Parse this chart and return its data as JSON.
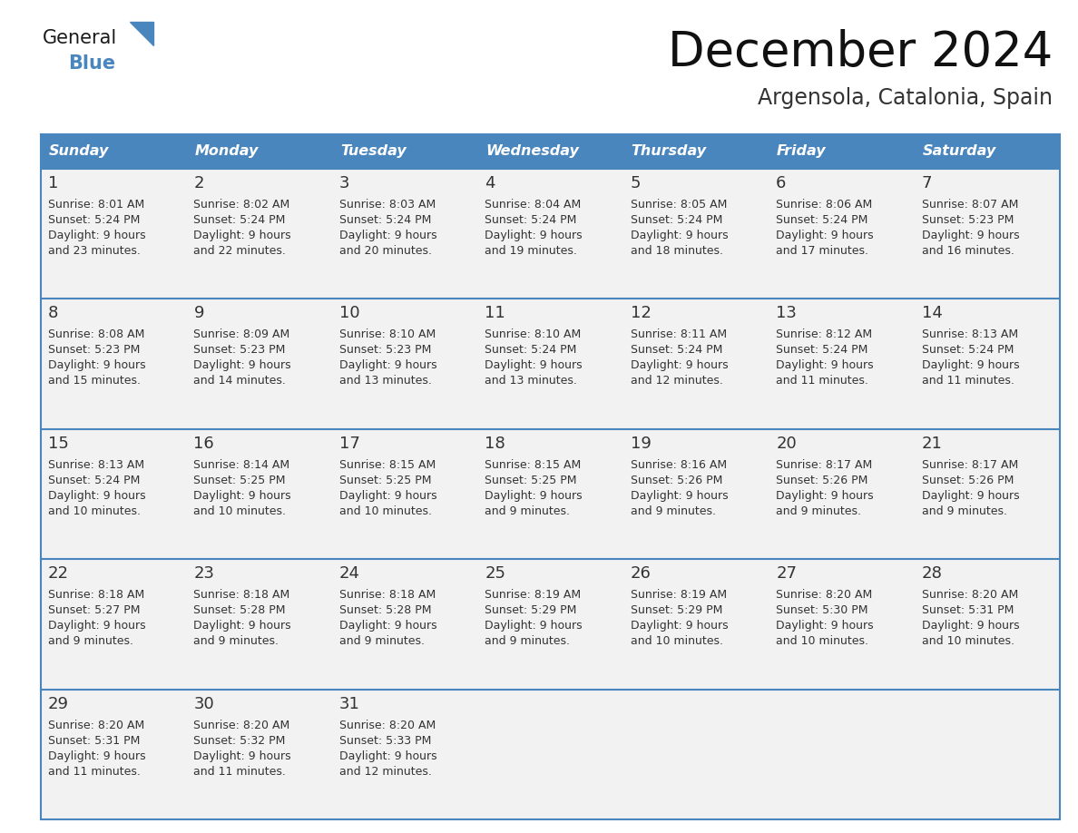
{
  "title": "December 2024",
  "subtitle": "Argensola, Catalonia, Spain",
  "header_bg_color": "#4a86be",
  "header_text_color": "#ffffff",
  "row_line_color": "#4a86be",
  "text_color": "#333333",
  "day_num_color": "#333333",
  "cell_bg_color": "#f2f2f2",
  "days_of_week": [
    "Sunday",
    "Monday",
    "Tuesday",
    "Wednesday",
    "Thursday",
    "Friday",
    "Saturday"
  ],
  "calendar_data": [
    [
      {
        "day": 1,
        "sunrise": "8:01 AM",
        "sunset": "5:24 PM",
        "daylight_hours": 9,
        "daylight_minutes": 23
      },
      {
        "day": 2,
        "sunrise": "8:02 AM",
        "sunset": "5:24 PM",
        "daylight_hours": 9,
        "daylight_minutes": 22
      },
      {
        "day": 3,
        "sunrise": "8:03 AM",
        "sunset": "5:24 PM",
        "daylight_hours": 9,
        "daylight_minutes": 20
      },
      {
        "day": 4,
        "sunrise": "8:04 AM",
        "sunset": "5:24 PM",
        "daylight_hours": 9,
        "daylight_minutes": 19
      },
      {
        "day": 5,
        "sunrise": "8:05 AM",
        "sunset": "5:24 PM",
        "daylight_hours": 9,
        "daylight_minutes": 18
      },
      {
        "day": 6,
        "sunrise": "8:06 AM",
        "sunset": "5:24 PM",
        "daylight_hours": 9,
        "daylight_minutes": 17
      },
      {
        "day": 7,
        "sunrise": "8:07 AM",
        "sunset": "5:23 PM",
        "daylight_hours": 9,
        "daylight_minutes": 16
      }
    ],
    [
      {
        "day": 8,
        "sunrise": "8:08 AM",
        "sunset": "5:23 PM",
        "daylight_hours": 9,
        "daylight_minutes": 15
      },
      {
        "day": 9,
        "sunrise": "8:09 AM",
        "sunset": "5:23 PM",
        "daylight_hours": 9,
        "daylight_minutes": 14
      },
      {
        "day": 10,
        "sunrise": "8:10 AM",
        "sunset": "5:23 PM",
        "daylight_hours": 9,
        "daylight_minutes": 13
      },
      {
        "day": 11,
        "sunrise": "8:10 AM",
        "sunset": "5:24 PM",
        "daylight_hours": 9,
        "daylight_minutes": 13
      },
      {
        "day": 12,
        "sunrise": "8:11 AM",
        "sunset": "5:24 PM",
        "daylight_hours": 9,
        "daylight_minutes": 12
      },
      {
        "day": 13,
        "sunrise": "8:12 AM",
        "sunset": "5:24 PM",
        "daylight_hours": 9,
        "daylight_minutes": 11
      },
      {
        "day": 14,
        "sunrise": "8:13 AM",
        "sunset": "5:24 PM",
        "daylight_hours": 9,
        "daylight_minutes": 11
      }
    ],
    [
      {
        "day": 15,
        "sunrise": "8:13 AM",
        "sunset": "5:24 PM",
        "daylight_hours": 9,
        "daylight_minutes": 10
      },
      {
        "day": 16,
        "sunrise": "8:14 AM",
        "sunset": "5:25 PM",
        "daylight_hours": 9,
        "daylight_minutes": 10
      },
      {
        "day": 17,
        "sunrise": "8:15 AM",
        "sunset": "5:25 PM",
        "daylight_hours": 9,
        "daylight_minutes": 10
      },
      {
        "day": 18,
        "sunrise": "8:15 AM",
        "sunset": "5:25 PM",
        "daylight_hours": 9,
        "daylight_minutes": 9
      },
      {
        "day": 19,
        "sunrise": "8:16 AM",
        "sunset": "5:26 PM",
        "daylight_hours": 9,
        "daylight_minutes": 9
      },
      {
        "day": 20,
        "sunrise": "8:17 AM",
        "sunset": "5:26 PM",
        "daylight_hours": 9,
        "daylight_minutes": 9
      },
      {
        "day": 21,
        "sunrise": "8:17 AM",
        "sunset": "5:26 PM",
        "daylight_hours": 9,
        "daylight_minutes": 9
      }
    ],
    [
      {
        "day": 22,
        "sunrise": "8:18 AM",
        "sunset": "5:27 PM",
        "daylight_hours": 9,
        "daylight_minutes": 9
      },
      {
        "day": 23,
        "sunrise": "8:18 AM",
        "sunset": "5:28 PM",
        "daylight_hours": 9,
        "daylight_minutes": 9
      },
      {
        "day": 24,
        "sunrise": "8:18 AM",
        "sunset": "5:28 PM",
        "daylight_hours": 9,
        "daylight_minutes": 9
      },
      {
        "day": 25,
        "sunrise": "8:19 AM",
        "sunset": "5:29 PM",
        "daylight_hours": 9,
        "daylight_minutes": 9
      },
      {
        "day": 26,
        "sunrise": "8:19 AM",
        "sunset": "5:29 PM",
        "daylight_hours": 9,
        "daylight_minutes": 10
      },
      {
        "day": 27,
        "sunrise": "8:20 AM",
        "sunset": "5:30 PM",
        "daylight_hours": 9,
        "daylight_minutes": 10
      },
      {
        "day": 28,
        "sunrise": "8:20 AM",
        "sunset": "5:31 PM",
        "daylight_hours": 9,
        "daylight_minutes": 10
      }
    ],
    [
      {
        "day": 29,
        "sunrise": "8:20 AM",
        "sunset": "5:31 PM",
        "daylight_hours": 9,
        "daylight_minutes": 11
      },
      {
        "day": 30,
        "sunrise": "8:20 AM",
        "sunset": "5:32 PM",
        "daylight_hours": 9,
        "daylight_minutes": 11
      },
      {
        "day": 31,
        "sunrise": "8:20 AM",
        "sunset": "5:33 PM",
        "daylight_hours": 9,
        "daylight_minutes": 12
      },
      null,
      null,
      null,
      null
    ]
  ]
}
